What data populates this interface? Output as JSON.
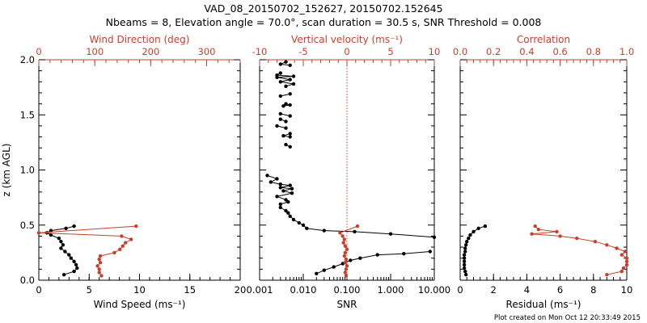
{
  "header": {
    "title_line1": "VAD_08_20150702_152627, 20150702.152645",
    "title_line2": "Nbeams = 8, Elevation angle = 70.0°, scan duration = 30.5 s, SNR Threshold = 0.008"
  },
  "footer": {
    "plot_created": "Plot created on Mon Oct 12 20:33:49 2015"
  },
  "colors": {
    "primary": "#000000",
    "secondary": "#c8402a"
  },
  "chart_data": [
    {
      "type": "line",
      "ylabel": "z (km AGL)",
      "ylim": [
        0,
        2
      ],
      "y_ticks": [
        "0.0",
        "0.5",
        "1.0",
        "1.5",
        "2.0"
      ],
      "bottom_axis": {
        "label": "Wind Speed (ms⁻¹)",
        "lim": [
          0,
          20
        ],
        "ticks": [
          "0",
          "5",
          "10",
          "15",
          "20"
        ]
      },
      "top_axis": {
        "label": "Wind Direction (deg)",
        "lim": [
          0,
          360
        ],
        "ticks": [
          "0",
          "100",
          "200",
          "300"
        ]
      },
      "series": [
        {
          "axis": "bottom",
          "color": "#000000",
          "points": [
            [
              3.5,
              0.49
            ],
            [
              2.7,
              0.47
            ],
            [
              1.2,
              0.45
            ],
            [
              0.8,
              0.43
            ],
            [
              1.2,
              0.41
            ],
            [
              2.0,
              0.38
            ],
            [
              2.2,
              0.35
            ],
            [
              2.4,
              0.32
            ],
            [
              2.2,
              0.29
            ],
            [
              2.6,
              0.26
            ],
            [
              3.0,
              0.23
            ],
            [
              3.2,
              0.2
            ],
            [
              3.5,
              0.17
            ],
            [
              3.7,
              0.14
            ],
            [
              3.8,
              0.11
            ],
            [
              3.5,
              0.08
            ],
            [
              2.5,
              0.05
            ]
          ]
        },
        {
          "axis": "top",
          "color": "#c8402a",
          "points": [
            [
              174,
              0.49
            ],
            [
              0,
              0.43
            ],
            [
              148,
              0.4
            ],
            [
              165,
              0.37
            ],
            [
              155,
              0.34
            ],
            [
              150,
              0.31
            ],
            [
              145,
              0.28
            ],
            [
              135,
              0.25
            ],
            [
              110,
              0.22
            ],
            [
              108,
              0.19
            ],
            [
              110,
              0.16
            ],
            [
              105,
              0.13
            ],
            [
              108,
              0.1
            ],
            [
              108,
              0.07
            ],
            [
              112,
              0.04
            ]
          ]
        }
      ]
    },
    {
      "type": "line",
      "ylim": [
        0,
        2
      ],
      "bottom_axis": {
        "label": "SNR",
        "scale": "log",
        "lim": [
          0.001,
          10
        ],
        "ticks": [
          "0.001",
          "0.010",
          "0.100",
          "1.000",
          "10.000"
        ]
      },
      "top_axis": {
        "label": "Vertical velocity (ms⁻¹)",
        "lim": [
          -10,
          10
        ],
        "ticks": [
          "-10",
          "-5",
          "0",
          "5",
          "10"
        ]
      },
      "reference_line": {
        "axis": "top",
        "value": 0,
        "color": "#c8402a",
        "style": "dotted"
      },
      "series": [
        {
          "axis": "bottom",
          "color": "#000000",
          "segments": [
            [
              [
                0.004,
                1.98
              ],
              [
                0.003,
                1.96
              ],
              [
                0.005,
                1.95
              ]
            ],
            [
              [
                0.003,
                1.88
              ],
              [
                0.0025,
                1.86
              ],
              [
                0.006,
                1.85
              ],
              [
                0.0025,
                1.84
              ],
              [
                0.005,
                1.82
              ],
              [
                0.003,
                1.8
              ],
              [
                0.006,
                1.78
              ],
              [
                0.004,
                1.76
              ]
            ],
            [
              [
                0.005,
                1.69
              ],
              [
                0.003,
                1.67
              ]
            ],
            [
              [
                0.004,
                1.6
              ],
              [
                0.005,
                1.59
              ],
              [
                0.0035,
                1.58
              ]
            ],
            [
              [
                0.003,
                1.51
              ],
              [
                0.005,
                1.49
              ]
            ],
            [
              [
                0.003,
                1.46
              ],
              [
                0.004,
                1.44
              ]
            ],
            [
              [
                0.0025,
                1.4
              ],
              [
                0.004,
                1.38
              ]
            ],
            [
              [
                0.005,
                1.33
              ],
              [
                0.0035,
                1.31
              ],
              [
                0.005,
                1.3
              ]
            ],
            [
              [
                0.004,
                1.23
              ],
              [
                0.005,
                1.21
              ]
            ],
            [
              [
                0.0015,
                0.95
              ],
              [
                0.0025,
                0.92
              ],
              [
                0.0018,
                0.89
              ],
              [
                0.003,
                0.87
              ],
              [
                0.005,
                0.86
              ],
              [
                0.003,
                0.84
              ],
              [
                0.0055,
                0.83
              ],
              [
                0.0035,
                0.81
              ],
              [
                0.0055,
                0.79
              ],
              [
                0.0025,
                0.76
              ],
              [
                0.004,
                0.73
              ],
              [
                0.0045,
                0.71
              ],
              [
                0.003,
                0.69
              ],
              [
                0.003,
                0.66
              ],
              [
                0.004,
                0.63
              ],
              [
                0.0045,
                0.61
              ],
              [
                0.005,
                0.58
              ],
              [
                0.006,
                0.55
              ],
              [
                0.008,
                0.52
              ],
              [
                0.01,
                0.5
              ],
              [
                0.012,
                0.47
              ],
              [
                0.03,
                0.45
              ],
              [
                0.15,
                0.44
              ],
              [
                1.0,
                0.42
              ],
              [
                10.0,
                0.39
              ]
            ],
            [
              [
                8.0,
                0.26
              ],
              [
                2.0,
                0.24
              ],
              [
                0.5,
                0.23
              ],
              [
                0.2,
                0.2
              ],
              [
                0.12,
                0.18
              ],
              [
                0.08,
                0.15
              ],
              [
                0.05,
                0.12
              ],
              [
                0.03,
                0.09
              ],
              [
                0.02,
                0.06
              ]
            ]
          ]
        },
        {
          "axis": "top",
          "color": "#c8402a",
          "points": [
            [
              1.2,
              0.49
            ],
            [
              -0.8,
              0.43
            ],
            [
              -0.5,
              0.4
            ],
            [
              -0.3,
              0.37
            ],
            [
              -0.4,
              0.34
            ],
            [
              -0.2,
              0.31
            ],
            [
              0.0,
              0.28
            ],
            [
              -0.2,
              0.25
            ],
            [
              -0.3,
              0.22
            ],
            [
              -0.1,
              0.19
            ],
            [
              -0.2,
              0.16
            ],
            [
              0.0,
              0.13
            ],
            [
              -0.1,
              0.1
            ],
            [
              -0.2,
              0.07
            ],
            [
              -0.1,
              0.04
            ]
          ]
        }
      ]
    },
    {
      "type": "line",
      "ylim": [
        0,
        2
      ],
      "bottom_axis": {
        "label": "Residual (ms⁻¹)",
        "lim": [
          0,
          10
        ],
        "ticks": [
          "0",
          "2",
          "4",
          "6",
          "8",
          "10"
        ]
      },
      "top_axis": {
        "label": "Correlation",
        "lim": [
          0,
          1
        ],
        "ticks": [
          "0.0",
          "0.2",
          "0.4",
          "0.6",
          "0.8",
          "1.0"
        ]
      },
      "series": [
        {
          "axis": "bottom",
          "color": "#000000",
          "points": [
            [
              1.5,
              0.49
            ],
            [
              1.1,
              0.47
            ],
            [
              0.8,
              0.44
            ],
            [
              0.6,
              0.41
            ],
            [
              0.5,
              0.38
            ],
            [
              0.4,
              0.35
            ],
            [
              0.35,
              0.32
            ],
            [
              0.3,
              0.29
            ],
            [
              0.3,
              0.26
            ],
            [
              0.25,
              0.23
            ],
            [
              0.25,
              0.2
            ],
            [
              0.25,
              0.17
            ],
            [
              0.25,
              0.14
            ],
            [
              0.25,
              0.11
            ],
            [
              0.3,
              0.08
            ],
            [
              0.35,
              0.05
            ]
          ]
        },
        {
          "axis": "top",
          "color": "#c8402a",
          "points": [
            [
              0.45,
              0.49
            ],
            [
              0.47,
              0.46
            ],
            [
              0.58,
              0.44
            ],
            [
              0.43,
              0.42
            ],
            [
              0.6,
              0.4
            ],
            [
              0.7,
              0.38
            ],
            [
              0.81,
              0.35
            ],
            [
              0.88,
              0.32
            ],
            [
              0.94,
              0.29
            ],
            [
              0.99,
              0.26
            ],
            [
              0.97,
              0.23
            ],
            [
              1.0,
              0.2
            ],
            [
              1.0,
              0.17
            ],
            [
              1.0,
              0.14
            ],
            [
              0.98,
              0.11
            ],
            [
              0.97,
              0.08
            ],
            [
              0.88,
              0.05
            ]
          ]
        }
      ]
    }
  ]
}
